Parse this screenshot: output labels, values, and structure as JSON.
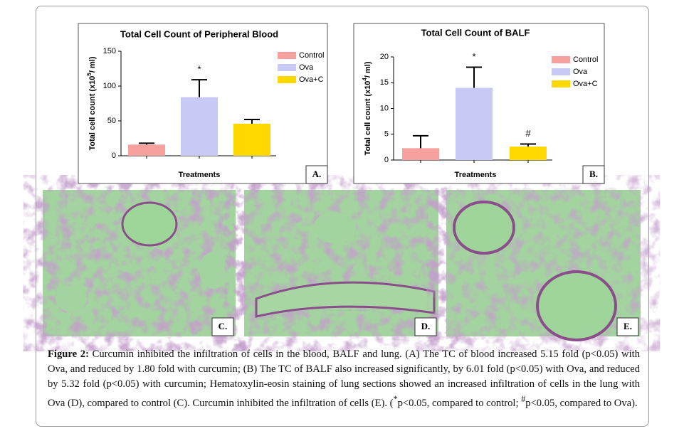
{
  "chart_data": [
    {
      "type": "bar",
      "title": "Total Cell Count of Peripheral Blood",
      "ylabel": {
        "text": "Total cell count (x10",
        "sup": "5",
        "after": "/ ml)"
      },
      "xlabel": "Treatments",
      "panel": "A.",
      "categories": [
        "Control",
        "Ova",
        "Ova+C"
      ],
      "values": [
        16,
        84,
        46
      ],
      "errors": [
        2,
        25,
        6
      ],
      "colors": [
        "#f6a19d",
        "#c9c9f5",
        "#ffd800"
      ],
      "ylim": [
        0,
        150
      ],
      "yticks": [
        0,
        50,
        100,
        150
      ],
      "annotations": [
        {
          "text": "*",
          "category": "Ova"
        }
      ],
      "legend": "upper right"
    },
    {
      "type": "bar",
      "title": "Total Cell Count of BALF",
      "ylabel": {
        "text": "Total cell count (x10",
        "sup": "4",
        "after": "/ ml)"
      },
      "xlabel": "Treatments",
      "panel": "B.",
      "categories": [
        "Control",
        "Ova",
        "Ova+C"
      ],
      "values": [
        2.3,
        14,
        2.6
      ],
      "errors": [
        2.4,
        4,
        0.5
      ],
      "colors": [
        "#f6a19d",
        "#c9c9f5",
        "#ffd800"
      ],
      "ylim": [
        0,
        20
      ],
      "yticks": [
        0,
        5,
        10,
        15,
        20
      ],
      "annotations": [
        {
          "text": "*",
          "category": "Ova"
        },
        {
          "text": "#",
          "category": "Ova+C"
        }
      ],
      "legend": "upper right"
    }
  ],
  "images": [
    {
      "label": "C."
    },
    {
      "label": "D."
    },
    {
      "label": "E."
    }
  ],
  "caption": {
    "label": "Figure 2:",
    "text": " Curcumin inhibited the infiltration of cells in the blood, BALF and lung. (A) The TC of blood increased 5.15 fold (p<0.05) with Ova, and reduced by 1.80 fold with curcumin; (B) The TC of BALF also increased significantly, by 6.01 fold (p<0.05) with Ova, and reduced by 5.32 fold (p<0.05) with curcumin; Hematoxylin-eosin staining of lung sections showed an increased infiltration of cells in the lung with Ova (D), compared to control (C). Curcumin inhibited the infiltration of cells (E). (",
    "sup1": "*",
    "text2": "p<0.05, compared to control; ",
    "sup2": "#",
    "text3": "p<0.05, compared to Ova)."
  }
}
